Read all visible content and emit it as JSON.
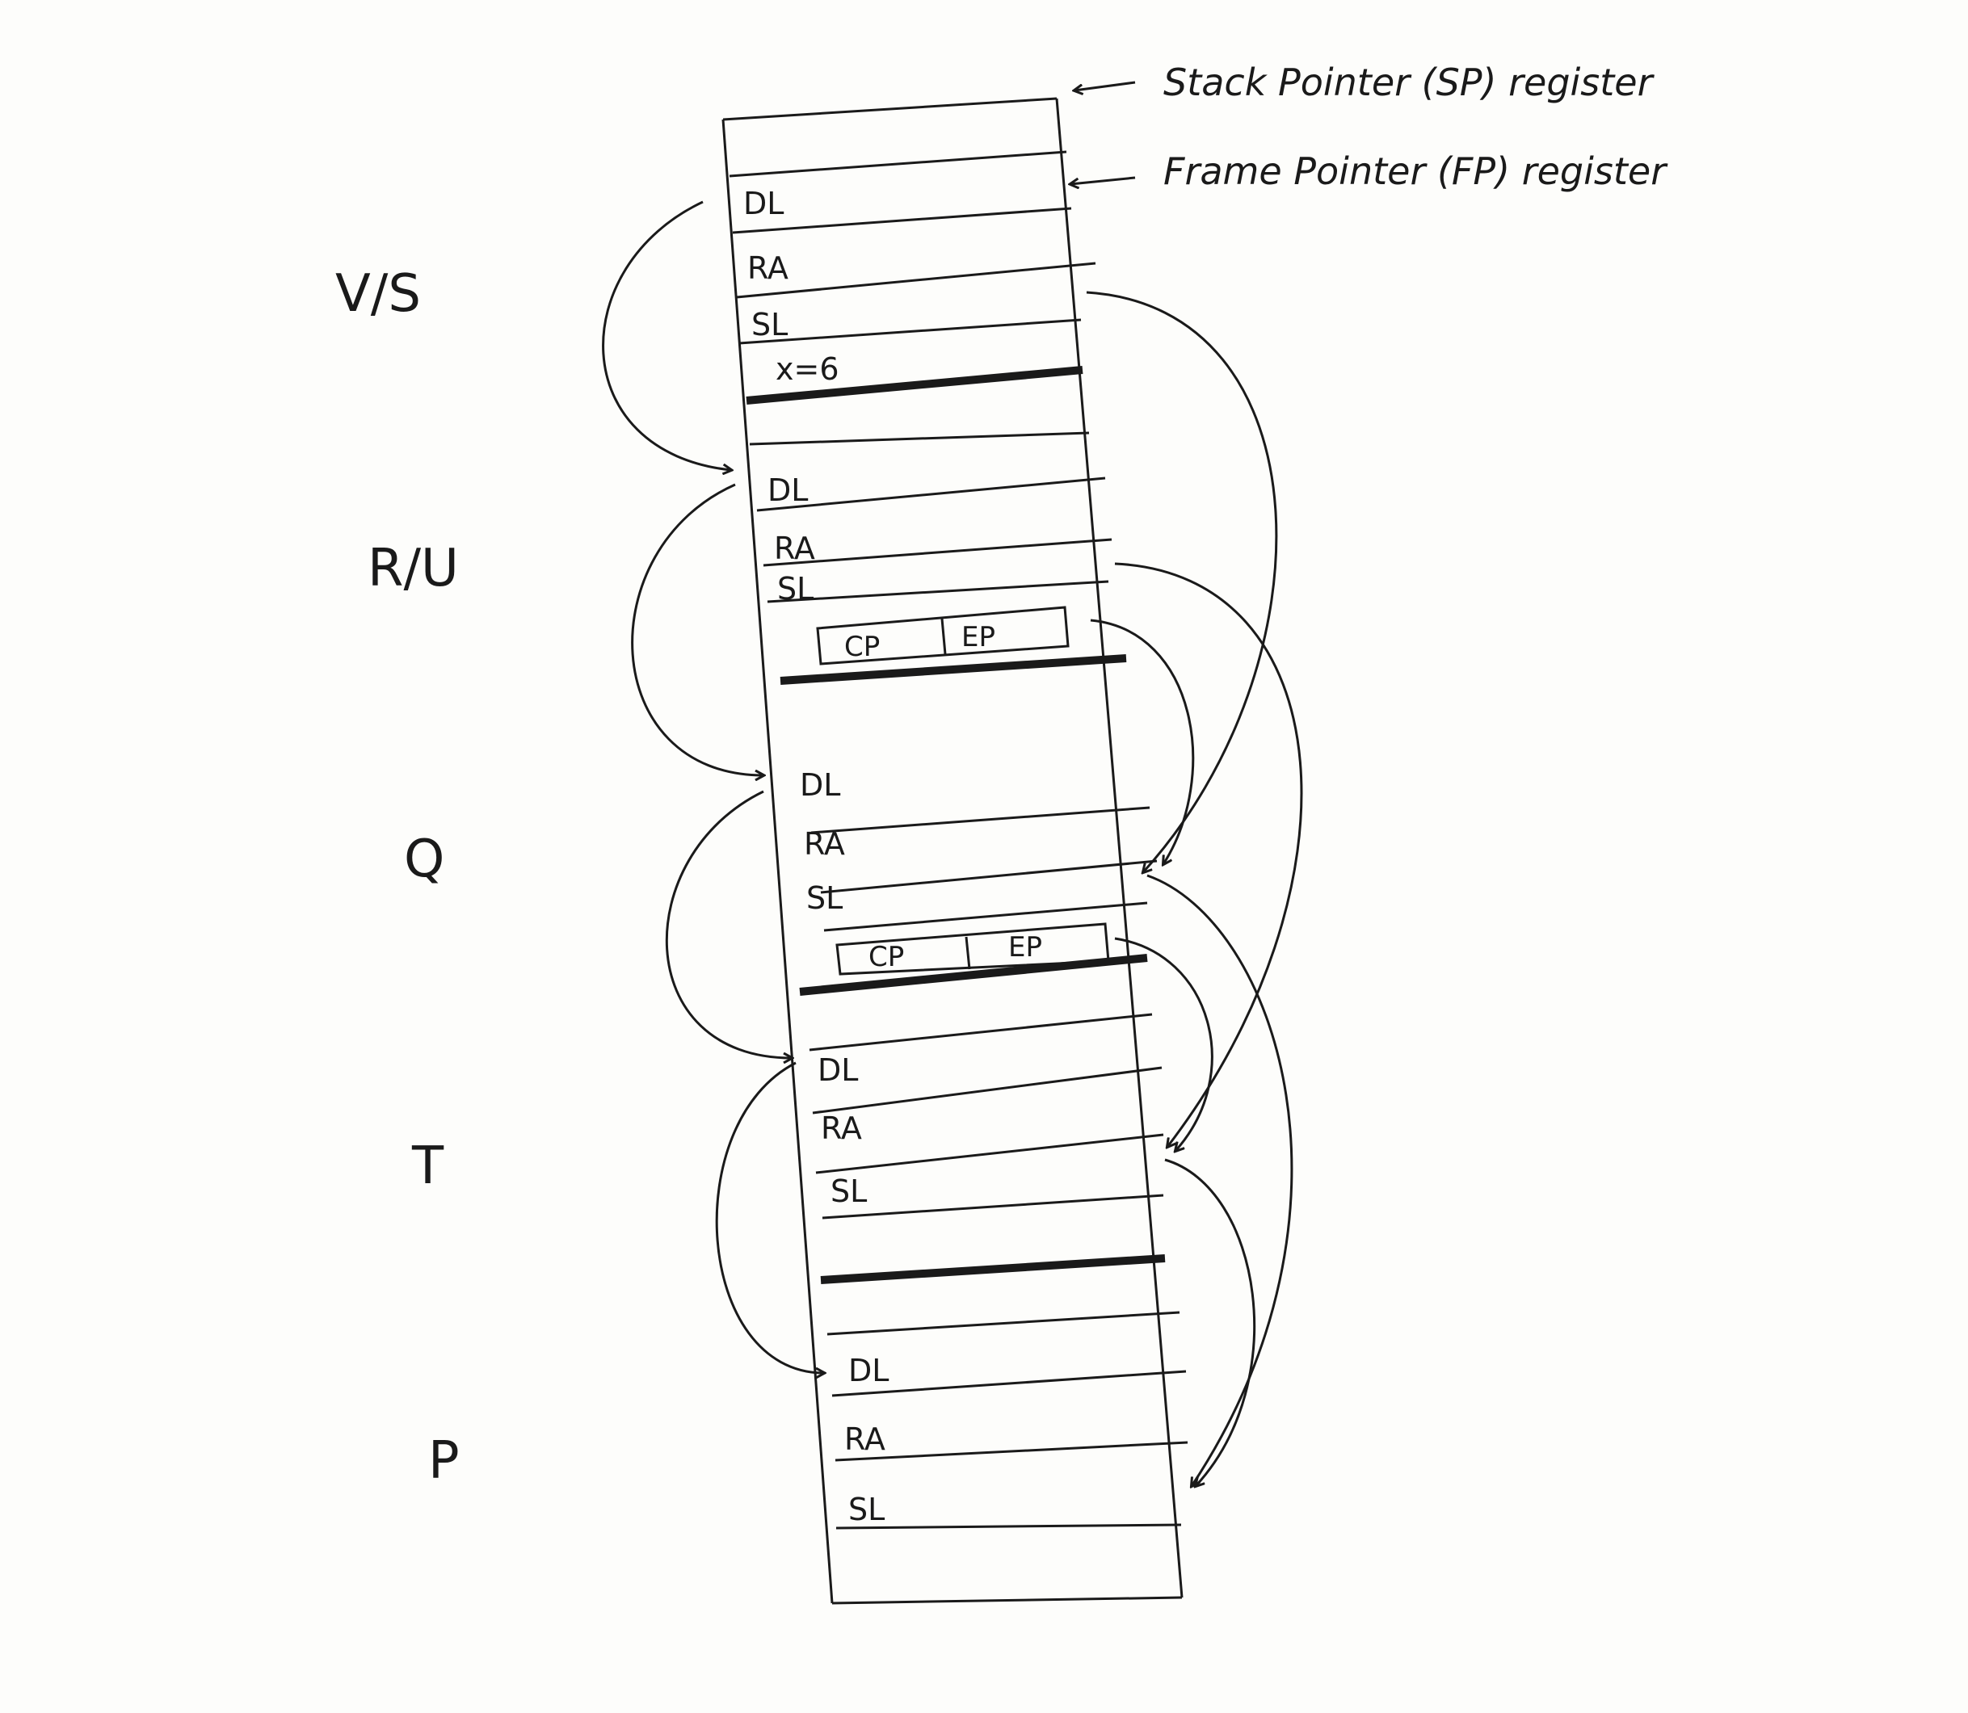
{
  "registers": {
    "sp_label": "Stack Pointer (SP) register",
    "fp_label": "Frame Pointer (FP) register"
  },
  "frames": [
    {
      "name": "V/S",
      "slots": [
        "DL",
        "RA",
        "SL",
        "x=6"
      ]
    },
    {
      "name": "R/U",
      "slots": [
        "DL",
        "RA",
        "SL"
      ],
      "pair": [
        "CP",
        "EP"
      ]
    },
    {
      "name": "Q",
      "slots": [
        "DL",
        "RA",
        "SL"
      ],
      "pair": [
        "CP",
        "EP"
      ]
    },
    {
      "name": "T",
      "slots": [
        "DL",
        "RA",
        "SL"
      ]
    },
    {
      "name": "P",
      "slots": [
        "DL",
        "RA",
        "SL"
      ]
    }
  ],
  "colors": {
    "ink": "#1a1a1a",
    "paper": "#fdfdfb"
  }
}
